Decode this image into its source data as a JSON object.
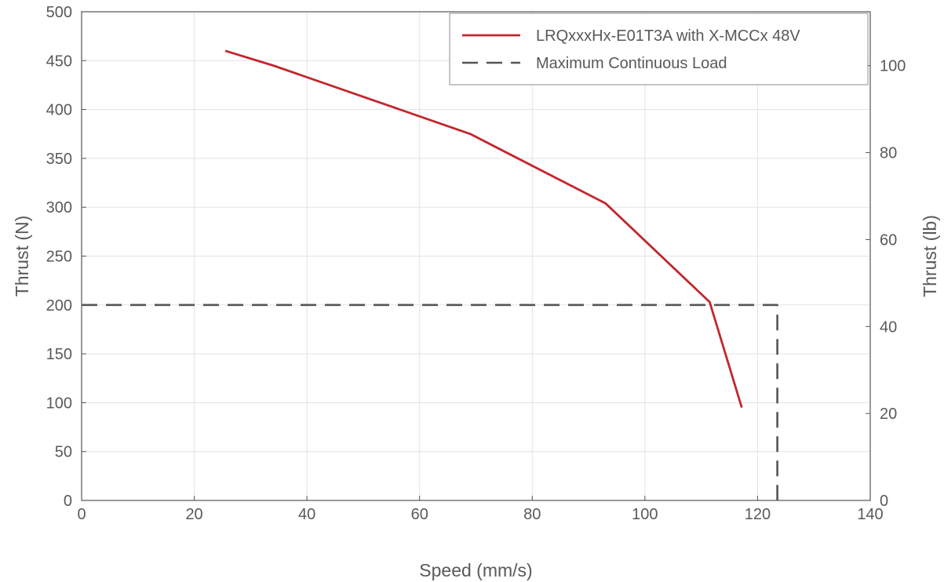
{
  "chart_data": {
    "type": "line",
    "title": "",
    "xlabel": "Speed (mm/s)",
    "ylabel": "Thrust (N)",
    "y2label": "Thrust (lb)",
    "xlim": [
      0,
      140
    ],
    "ylim": [
      0,
      500
    ],
    "y2lim": [
      0,
      112.4
    ],
    "xticks": [
      0,
      20,
      40,
      60,
      80,
      100,
      120,
      140
    ],
    "yticks": [
      0,
      50,
      100,
      150,
      200,
      250,
      300,
      350,
      400,
      450,
      500
    ],
    "y2ticks": [
      0,
      20,
      40,
      60,
      80,
      100
    ],
    "grid": true,
    "legend_position": "top-right",
    "series": [
      {
        "name": "LRQxxxHx-E01T3A with X-MCCx 48V",
        "color": "#c1272d",
        "style": "solid",
        "x": [
          25.5,
          34,
          69,
          93,
          111.5,
          117.2
        ],
        "y": [
          460,
          445,
          375,
          304,
          203,
          95
        ]
      },
      {
        "name": "Maximum Continuous Load",
        "color": "#555555",
        "style": "dashed",
        "x": [
          0,
          123.5,
          123.5
        ],
        "y": [
          200,
          200,
          0
        ]
      }
    ]
  }
}
